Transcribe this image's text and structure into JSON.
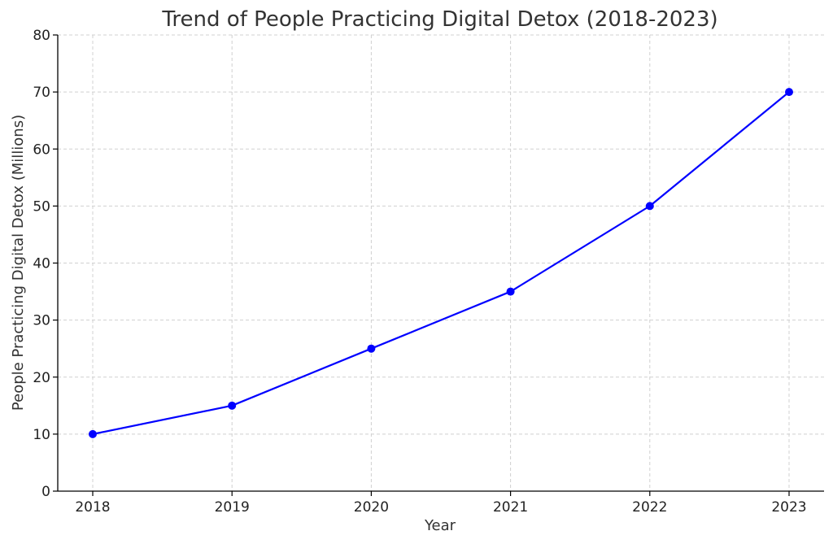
{
  "chart_data": {
    "type": "line",
    "title": "Trend of People Practicing Digital Detox (2018-2023)",
    "xlabel": "Year",
    "ylabel": "People Practicing Digital Detox (Millions)",
    "x": [
      "2018",
      "2019",
      "2020",
      "2021",
      "2022",
      "2023"
    ],
    "series": [
      {
        "values": [
          10,
          15,
          25,
          35,
          50,
          70
        ],
        "color": "#0000ff",
        "marker": "circle"
      }
    ],
    "ylim": [
      0,
      80
    ],
    "yticks": [
      "0",
      "10",
      "20",
      "30",
      "40",
      "50",
      "60",
      "70",
      "80"
    ],
    "grid": true,
    "grid_style": "dashed",
    "legend": "none"
  }
}
